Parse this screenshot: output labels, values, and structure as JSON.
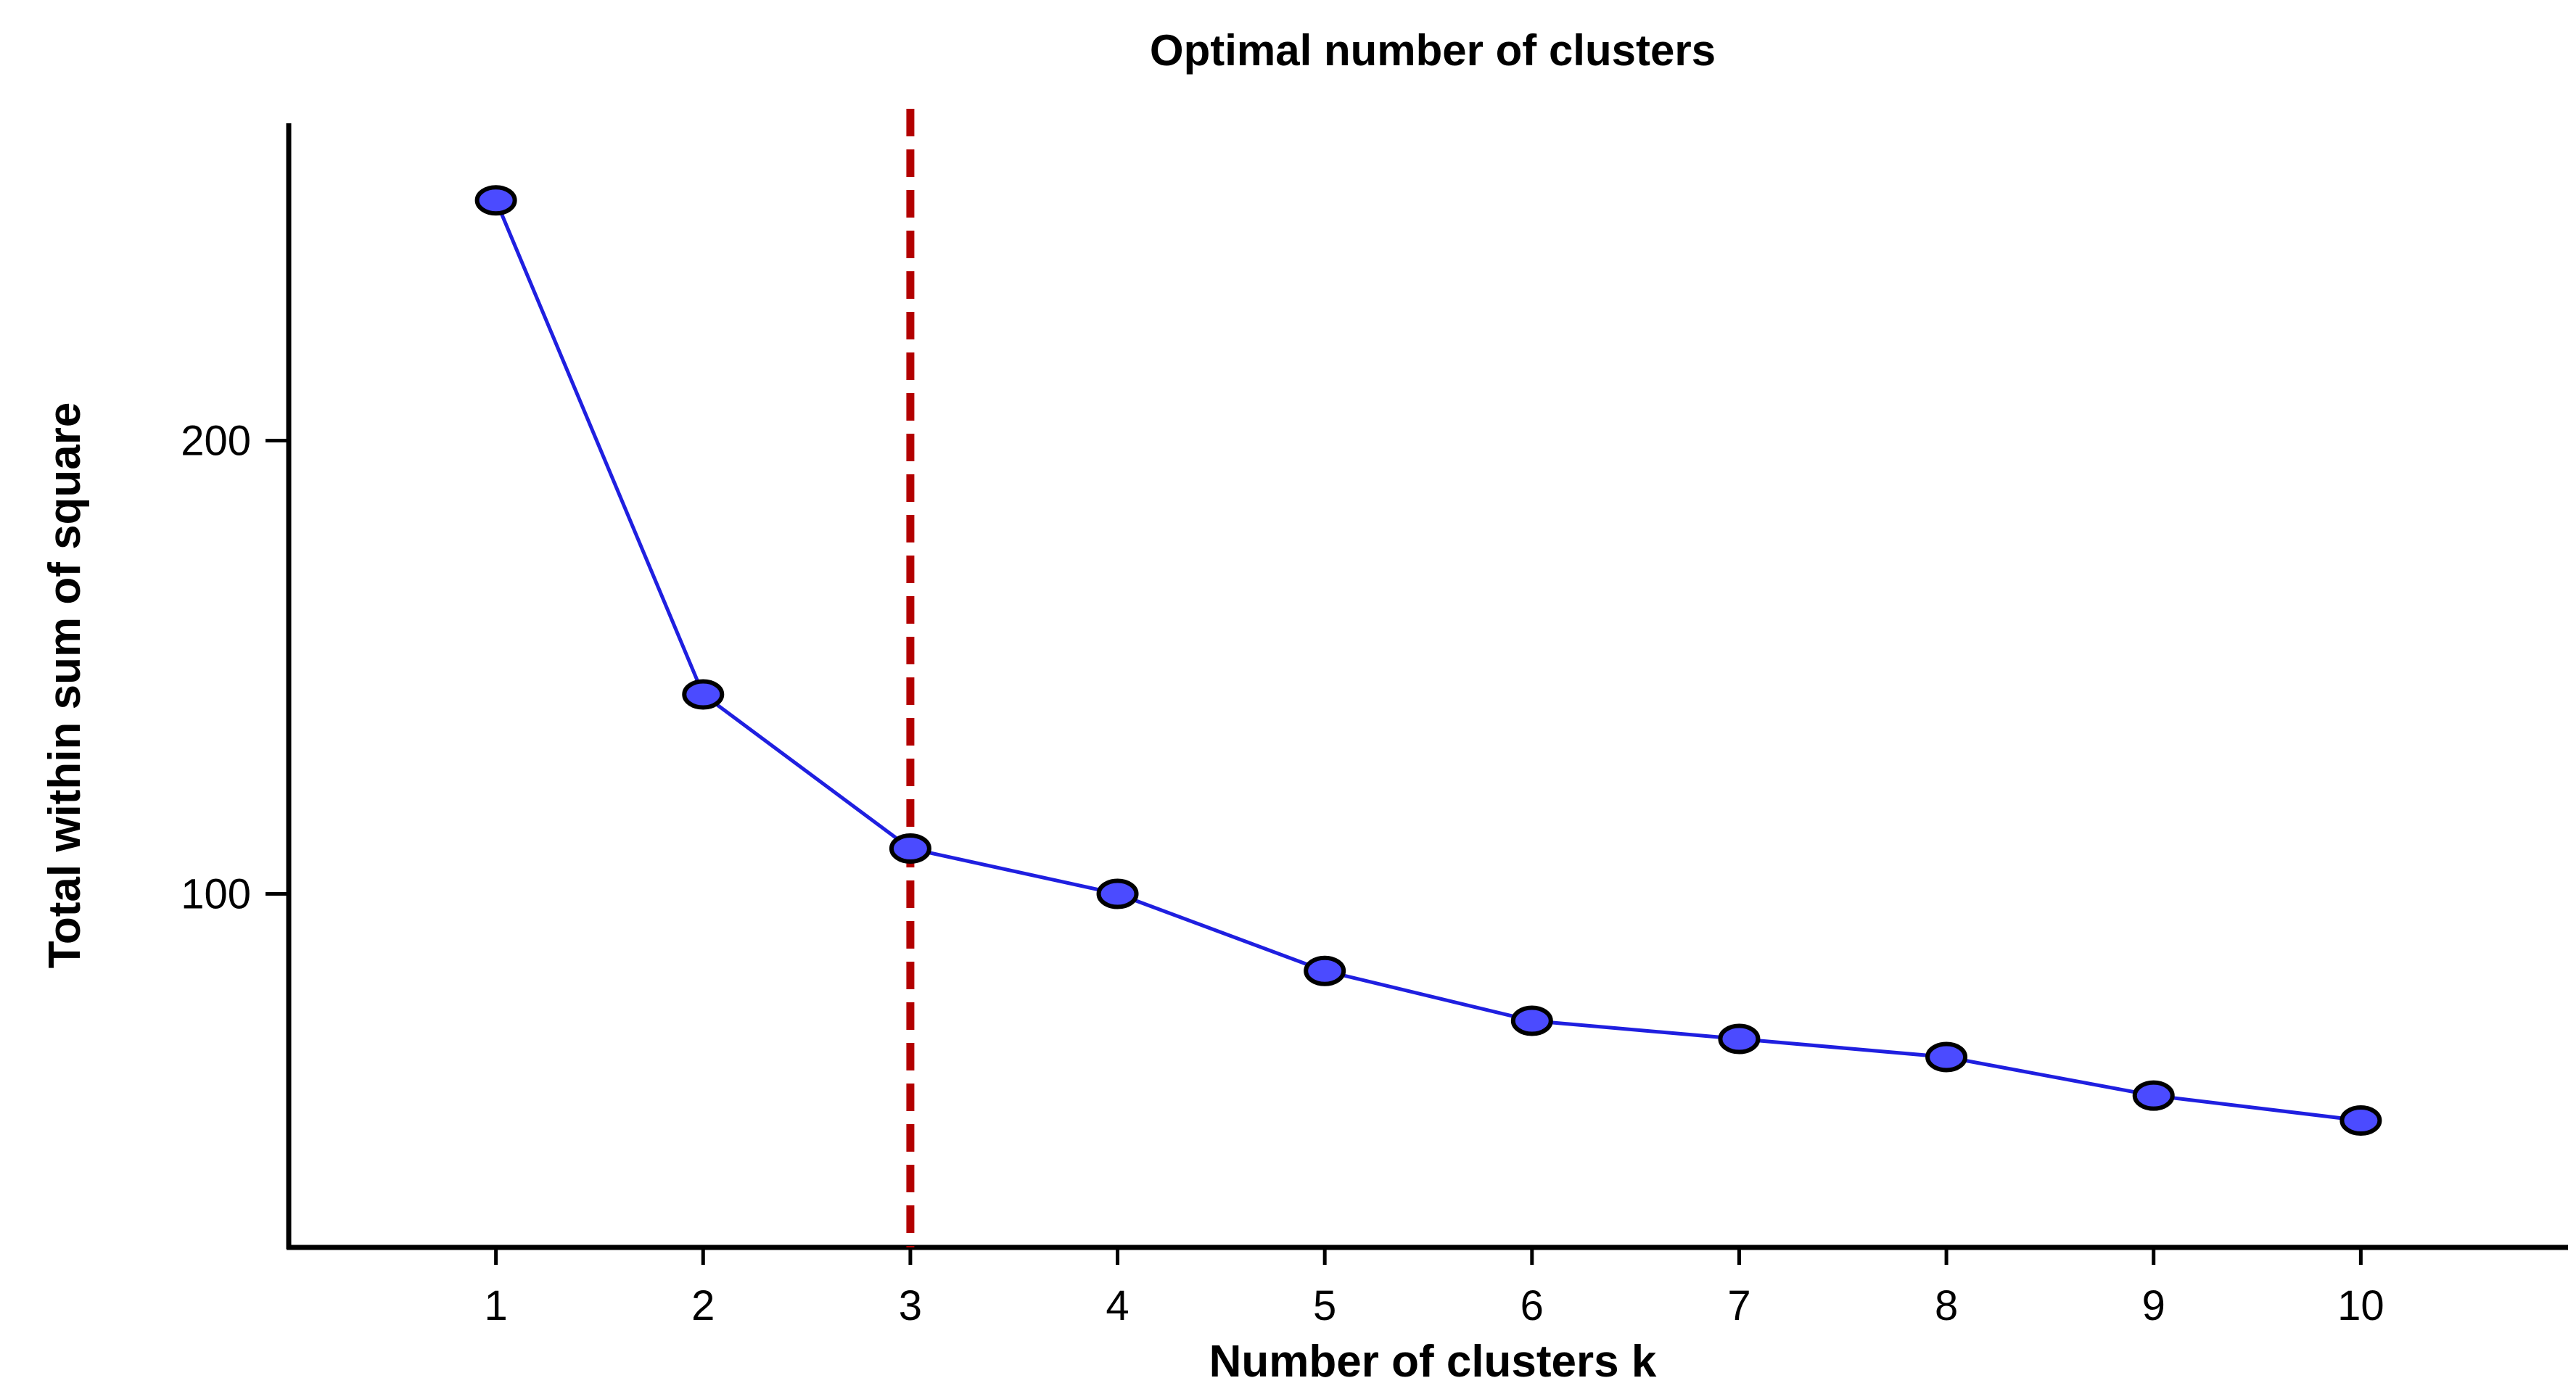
{
  "chart_data": {
    "type": "line",
    "title": "Optimal number of clusters",
    "xlabel": "Number of clusters k",
    "ylabel": "Total within sum of square",
    "x": [
      1,
      2,
      3,
      4,
      5,
      6,
      7,
      8,
      9,
      10
    ],
    "series": [
      {
        "values": [
          253,
          144,
          110,
          100,
          83,
          72,
          68,
          64,
          55.5,
          50
        ]
      }
    ],
    "x_ticks": [
      "1",
      "2",
      "3",
      "4",
      "5",
      "6",
      "7",
      "8",
      "9",
      "10"
    ],
    "y_ticks": [
      "100",
      "200"
    ],
    "xlim": [
      0,
      11
    ],
    "ylim": [
      22,
      270
    ],
    "grid": false,
    "reference_line": {
      "axis": "x",
      "value": 3,
      "style": "dashed"
    },
    "colors": {
      "line": "#1f1fe0",
      "marker_fill": "#4b4bff",
      "marker_edge": "#000000",
      "reference_line": "#b30000",
      "axis": "#000000"
    }
  }
}
